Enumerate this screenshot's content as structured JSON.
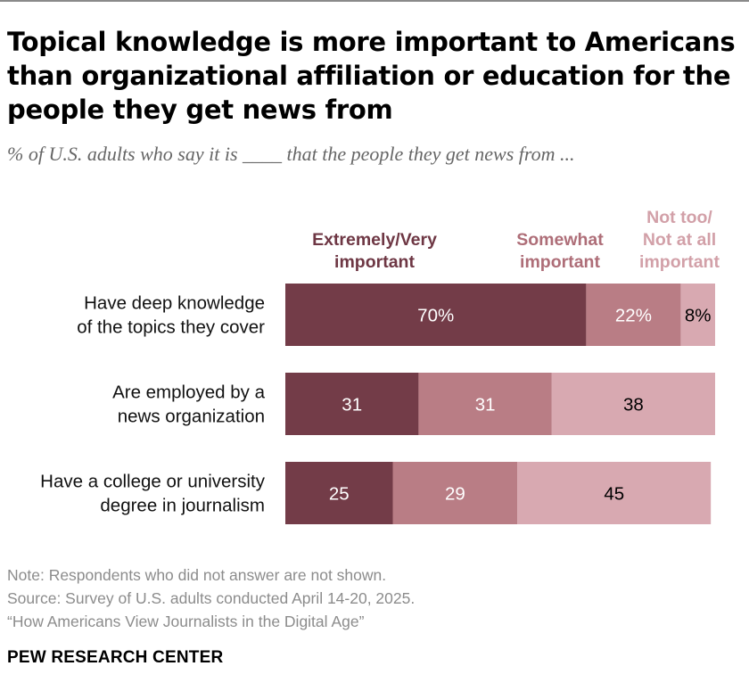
{
  "title": "Topical knowledge is more important to Americans than organizational affiliation or education for the people they get news from",
  "subtitle": "% of U.S. adults who say it is ____ that the people they get news from ...",
  "notes": [
    "Note: Respondents who did not answer are not shown.",
    "Source: Survey of U.S. adults conducted April 14-20, 2025.",
    "“How Americans View Journalists in the Digital Age”"
  ],
  "source_org": "PEW RESEARCH CENTER",
  "colors": {
    "extremely": "#733c48",
    "somewhat": "#b97d85",
    "not_too": "#d8a9b1",
    "label_light": "#ffffff",
    "label_dark": "#000000"
  },
  "chart_data": {
    "type": "bar",
    "orientation": "horizontal",
    "stacked": true,
    "categories": [
      [
        "Have deep knowledge",
        "of the topics they cover"
      ],
      [
        "Are employed by a",
        "news organization"
      ],
      [
        "Have a college or university",
        "degree in journalism"
      ]
    ],
    "series": [
      {
        "name": [
          "Extremely/Very",
          "important"
        ],
        "values": [
          70,
          31,
          25
        ],
        "labels": [
          "70%",
          "31",
          "25"
        ]
      },
      {
        "name": [
          "Somewhat",
          "important"
        ],
        "values": [
          22,
          31,
          29
        ],
        "labels": [
          "22%",
          "31",
          "29"
        ]
      },
      {
        "name": [
          "Not too/",
          "Not at all",
          "important"
        ],
        "values": [
          8,
          38,
          45
        ],
        "labels": [
          "8%",
          "38",
          "45"
        ]
      }
    ],
    "xlim": [
      0,
      100
    ]
  }
}
